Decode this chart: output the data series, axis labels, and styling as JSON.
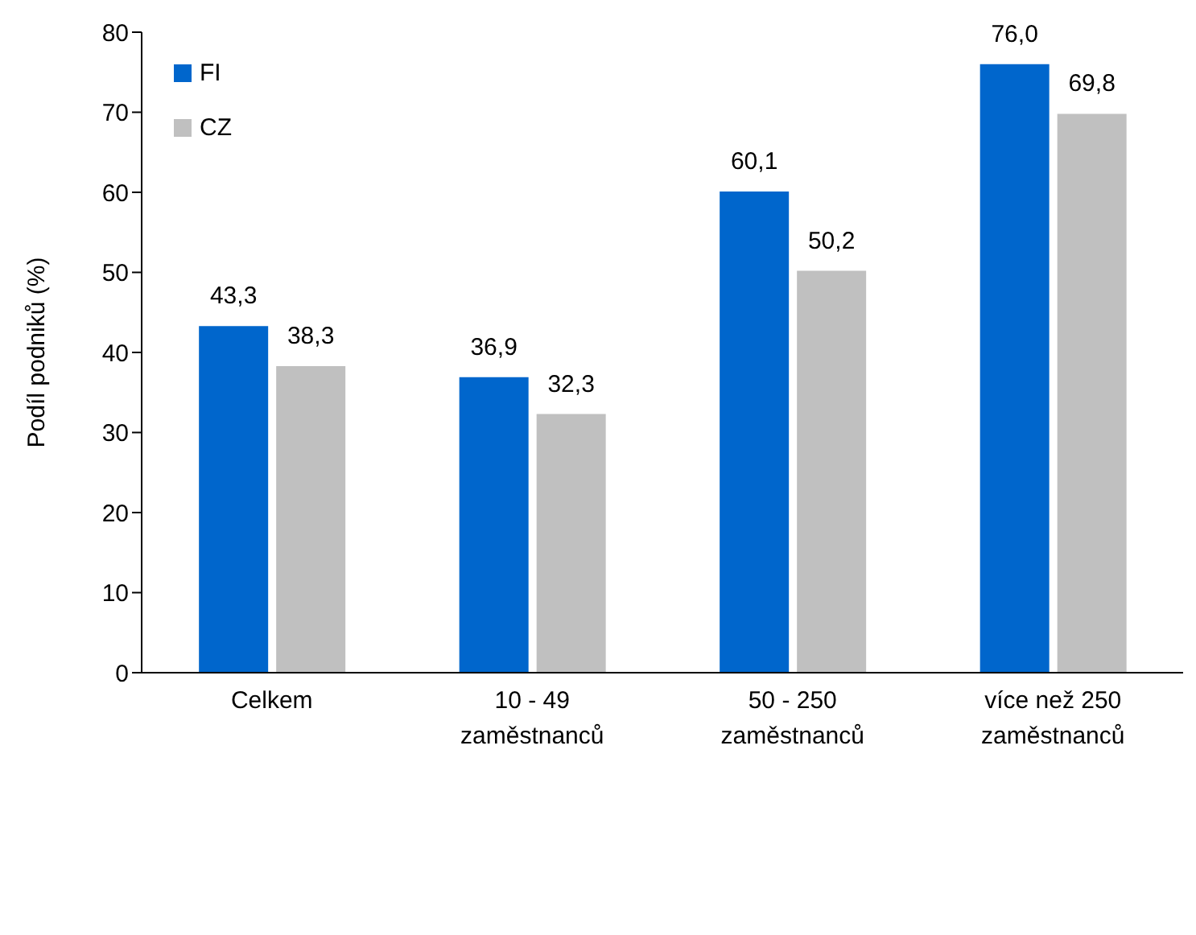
{
  "chart_data": {
    "type": "bar",
    "ylabel": "Podíl podniků (%)",
    "categories": [
      "Celkem",
      "10 - 49\nzaměstnanců",
      "50 - 250\nzaměstnanců",
      "více než 250\nzaměstnanců"
    ],
    "series": [
      {
        "name": "FI",
        "color": "#0066cc",
        "values": [
          43.3,
          36.9,
          60.1,
          76.0
        ],
        "value_labels": [
          "43,3",
          "36,9",
          "60,1",
          "76,0"
        ]
      },
      {
        "name": "CZ",
        "color": "#c0c0c0",
        "values": [
          38.3,
          32.3,
          50.2,
          69.8
        ],
        "value_labels": [
          "38,3",
          "32,3",
          "50,2",
          "69,8"
        ]
      }
    ],
    "ylim": [
      0,
      80
    ],
    "yticks": [
      0,
      10,
      20,
      30,
      40,
      50,
      60,
      70,
      80
    ],
    "grid": false,
    "legend": "top left"
  }
}
